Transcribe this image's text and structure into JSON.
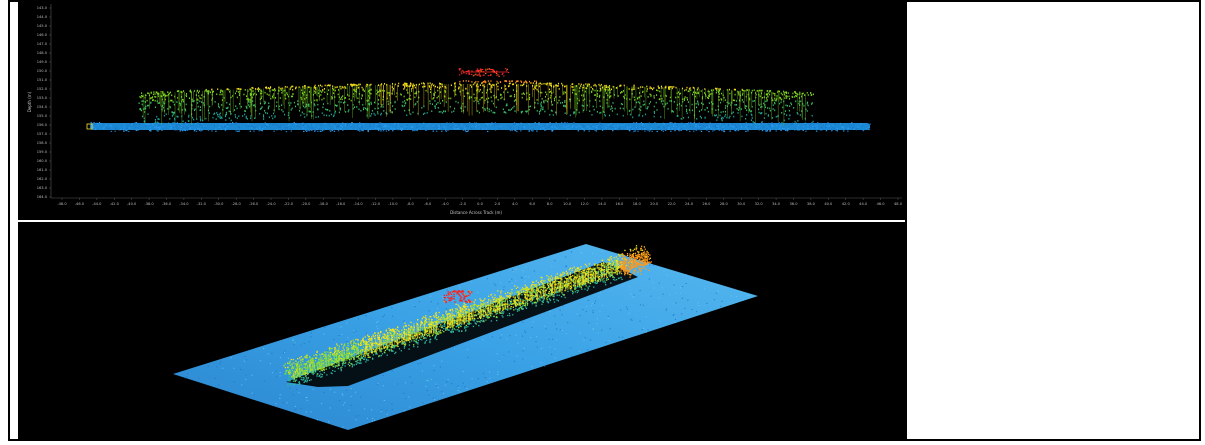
{
  "top_view": {
    "x_axis": {
      "label": "Distance Across Track (m)",
      "ticks": [
        "-48.0",
        "-46.0",
        "-44.0",
        "-42.0",
        "-40.0",
        "-38.0",
        "-36.0",
        "-34.0",
        "-32.0",
        "-30.0",
        "-28.0",
        "-26.0",
        "-24.0",
        "-22.0",
        "-20.0",
        "-18.0",
        "-16.0",
        "-14.0",
        "-12.0",
        "-10.0",
        "-8.0",
        "-6.0",
        "-4.0",
        "-2.0",
        "0.0",
        "2.0",
        "4.0",
        "6.0",
        "8.0",
        "10.0",
        "12.0",
        "14.0",
        "16.0",
        "18.0",
        "20.0",
        "22.0",
        "24.0",
        "26.0",
        "28.0",
        "30.0",
        "32.0",
        "34.0",
        "36.0",
        "38.0",
        "40.0",
        "42.0",
        "44.0",
        "46.0",
        "48.0"
      ]
    },
    "y_axis": {
      "label": "Depth (m)",
      "ticks": [
        "143.0",
        "144.0",
        "145.0",
        "146.0",
        "147.0",
        "148.0",
        "149.0",
        "150.0",
        "151.0",
        "152.0",
        "153.0",
        "154.0",
        "155.0",
        "156.0",
        "157.0",
        "158.0",
        "159.0",
        "160.0",
        "161.0",
        "162.0",
        "163.0",
        "164.0"
      ]
    },
    "colors": {
      "seabed": "#1e90e0",
      "low": "#1fa89a",
      "mid": "#7ed321",
      "high": "#f5e11a",
      "peak": "#ff8a1e",
      "top": "#ff2a2a",
      "background": "#000000"
    }
  },
  "bottom_view": {
    "colors": {
      "seabed": "#2e8fd6",
      "seabed_light": "#55b6ef",
      "wreck_low": "#2fb6a0",
      "wreck_mid": "#9be22a",
      "wreck_high": "#f3e41c",
      "wreck_peak": "#ff9a1a",
      "wreck_top": "#ff2020",
      "shadow": "#000000"
    }
  }
}
